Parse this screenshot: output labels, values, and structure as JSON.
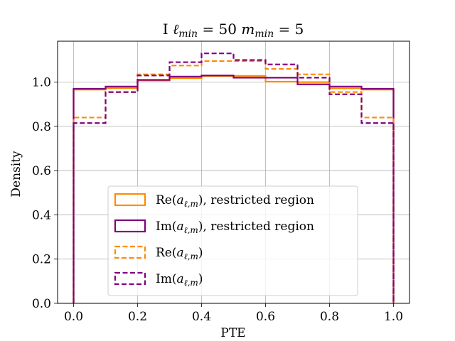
{
  "chart_data": {
    "type": "histogram-step",
    "title": "I ℓmin = 50   mmin = 5",
    "title_parts": {
      "prefix": "I ",
      "l_sym": "ℓ",
      "l_sub": "min",
      "l_val": "= 50",
      "m_sym": "m",
      "m_sub": "min",
      "m_val": "= 5"
    },
    "xlabel": "PTE",
    "ylabel": "Density",
    "xlim": [
      -0.05,
      1.05
    ],
    "ylim": [
      0.0,
      1.185
    ],
    "xticks": [
      0.0,
      0.2,
      0.4,
      0.6,
      0.8,
      1.0
    ],
    "xtick_labels": [
      "0.0",
      "0.2",
      "0.4",
      "0.6",
      "0.8",
      "1.0"
    ],
    "yticks": [
      0.0,
      0.2,
      0.4,
      0.6,
      0.8,
      1.0
    ],
    "ytick_labels": [
      "0.0",
      "0.2",
      "0.4",
      "0.6",
      "0.8",
      "1.0"
    ],
    "grid": true,
    "legend_position": "lower-center",
    "bin_edges": [
      0.0,
      0.1,
      0.2,
      0.3,
      0.4,
      0.5,
      0.6,
      0.7,
      0.8,
      0.9,
      1.0
    ],
    "series": [
      {
        "name": "Re(aℓ,m), restricted region",
        "legend": {
          "head": "Re(",
          "sym": "a",
          "sub": "ℓ,m",
          "tail": "), restricted region"
        },
        "color": "#ff8c00",
        "dash": "solid",
        "values": [
          0.966,
          0.973,
          1.007,
          1.018,
          1.027,
          1.028,
          1.002,
          1.0,
          0.972,
          0.966
        ]
      },
      {
        "name": "Im(aℓ,m), restricted region",
        "legend": {
          "head": "Im(",
          "sym": "a",
          "sub": "ℓ,m",
          "tail": "), restricted region"
        },
        "color": "#800080",
        "dash": "solid",
        "values": [
          0.97,
          0.98,
          1.01,
          1.025,
          1.03,
          1.02,
          1.02,
          0.99,
          0.98,
          0.97
        ]
      },
      {
        "name": "Re(aℓ,m)",
        "legend": {
          "head": "Re(",
          "sym": "a",
          "sub": "ℓ,m",
          "tail": ")"
        },
        "color": "#ff8c00",
        "dash": "dashed",
        "values": [
          0.84,
          0.955,
          1.035,
          1.075,
          1.095,
          1.095,
          1.06,
          1.035,
          0.955,
          0.84
        ]
      },
      {
        "name": "Im(aℓ,m)",
        "legend": {
          "head": "Im(",
          "sym": "a",
          "sub": "ℓ,m",
          "tail": ")"
        },
        "color": "#800080",
        "dash": "dashed",
        "values": [
          0.815,
          0.955,
          1.03,
          1.09,
          1.13,
          1.1,
          1.08,
          1.02,
          0.945,
          0.815
        ]
      }
    ]
  }
}
